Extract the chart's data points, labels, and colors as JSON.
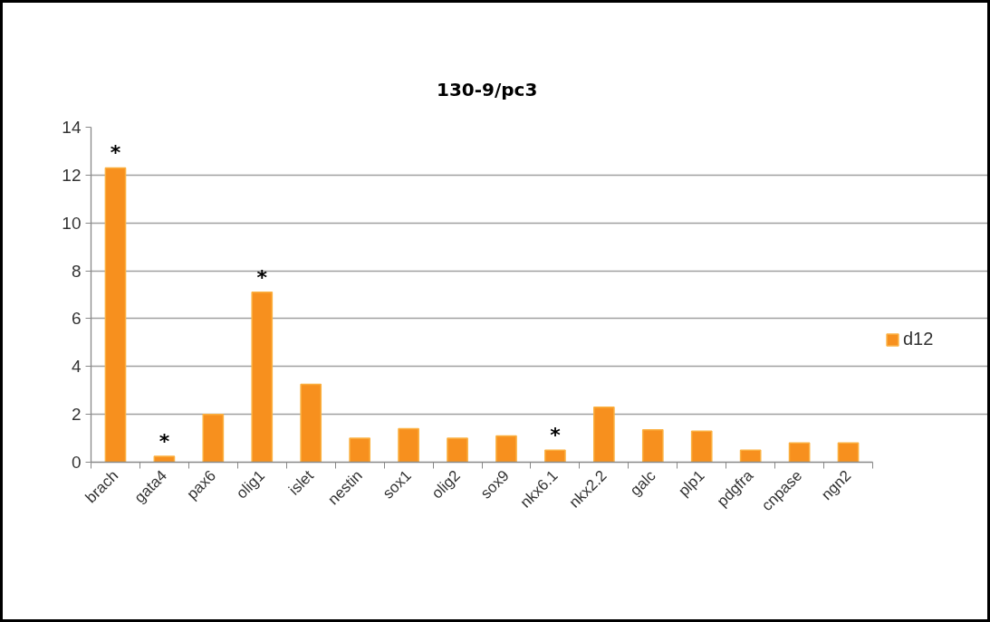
{
  "chart_data": {
    "type": "bar",
    "title": "130-9/pc3",
    "categories": [
      "brach",
      "gata4",
      "pax6",
      "olig1",
      "islet",
      "nestin",
      "sox1",
      "olig2",
      "sox9",
      "nkx6.1",
      "nkx2.2",
      "galc",
      "plp1",
      "pdgfra",
      "cnpase",
      "ngn2"
    ],
    "series": [
      {
        "name": "d12",
        "color": "#f7901e",
        "values": [
          12.3,
          0.25,
          2.0,
          7.1,
          3.25,
          1.0,
          1.4,
          1.0,
          1.1,
          0.5,
          2.3,
          1.35,
          1.3,
          0.5,
          0.8,
          0.8
        ]
      }
    ],
    "ylim": [
      0,
      14
    ],
    "yticks": [
      0,
      2,
      4,
      6,
      8,
      10,
      12,
      14
    ],
    "grid": "y",
    "legend": "right",
    "annotations": [
      {
        "text": "*",
        "x": "brach",
        "y": 12.3
      },
      {
        "text": "*",
        "x": "gata4",
        "y": 0.25
      },
      {
        "text": "*",
        "x": "olig1",
        "y": 7.1
      },
      {
        "text": "*",
        "x": "nkx6.1",
        "y": 0.5
      }
    ]
  }
}
